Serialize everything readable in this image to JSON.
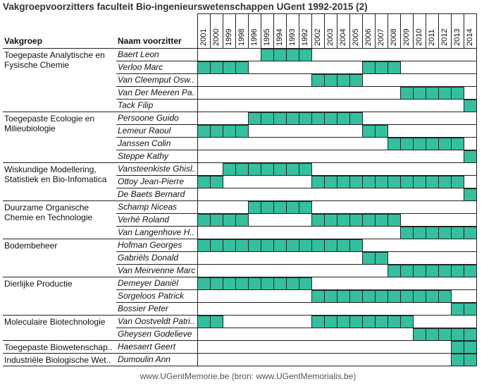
{
  "title": "Vakgroepvoorzitters faculteit Bio-ingenieurswetenschappen UGent 1992-2015 (2)",
  "headers": {
    "group": "Vakgroep",
    "person": "Naam voorzitter"
  },
  "footer": "www.UGentMemorie.be (bron: www.UGentMemorialis.be)",
  "colors": {
    "bar": "#35bf9e",
    "border": "#1f2a2a"
  },
  "chart_data": {
    "type": "table",
    "years": [
      "2001",
      "2000",
      "1999",
      "1998",
      "1996",
      "1995",
      "1994",
      "1993",
      "1992",
      "2002",
      "2003",
      "2004",
      "2005",
      "2006",
      "2007",
      "2008",
      "2009",
      "2010",
      "2011",
      "2012",
      "2013",
      "2014"
    ],
    "groups": [
      {
        "name": "Toegepaste Analytische en Fysische Chemie",
        "rows": [
          {
            "name": "Baert Leon",
            "years": [
              "1995",
              "1994",
              "1993",
              "1992"
            ]
          },
          {
            "name": "Verloo Marc",
            "years": [
              "2001",
              "2000",
              "1999",
              "1998",
              "2006",
              "2007",
              "2008"
            ]
          },
          {
            "name": "Van Cleemput Osw..",
            "years": [
              "2002",
              "2003",
              "2004",
              "2005"
            ]
          },
          {
            "name": "Van Der Meeren Pa..",
            "years": [
              "2009",
              "2010",
              "2011",
              "2012",
              "2013"
            ]
          },
          {
            "name": "Tack Filip",
            "years": [
              "2014"
            ]
          }
        ]
      },
      {
        "name": "Toegepaste Ecologie en Milieubiologie",
        "rows": [
          {
            "name": "Persoone Guido",
            "years": [
              "1996",
              "1995",
              "1994",
              "1993",
              "1992",
              "2002",
              "2003",
              "2004",
              "2005"
            ]
          },
          {
            "name": "Lemeur Raoul",
            "years": [
              "2001",
              "2000",
              "1999",
              "1998",
              "2006",
              "2007"
            ]
          },
          {
            "name": "Janssen Colin",
            "years": [
              "2008",
              "2009",
              "2010",
              "2011",
              "2012",
              "2013"
            ]
          },
          {
            "name": "Steppe Kathy",
            "years": [
              "2014"
            ]
          }
        ]
      },
      {
        "name": "Wiskundige Modellering, Statistiek en Bio-Infomatica",
        "rows": [
          {
            "name": "Vansteenkiste Ghisl..",
            "years": [
              "1999",
              "1998",
              "1996",
              "1995",
              "1994",
              "1993",
              "1992"
            ]
          },
          {
            "name": "Ottoy Jean-Pierre",
            "years": [
              "2001",
              "2000",
              "2002",
              "2003",
              "2004",
              "2005",
              "2006",
              "2007",
              "2008",
              "2009",
              "2010",
              "2011",
              "2012",
              "2013"
            ]
          },
          {
            "name": "De Baets Bernard",
            "years": [
              "2014"
            ]
          }
        ]
      },
      {
        "name": "Duurzame Organische Chemie en Technologie",
        "rows": [
          {
            "name": "Schamp Niceas",
            "years": [
              "1996",
              "1995",
              "1994",
              "1993",
              "1992"
            ]
          },
          {
            "name": "Verhé Roland",
            "years": [
              "2001",
              "2000",
              "1999",
              "1998",
              "2002",
              "2003",
              "2004",
              "2005",
              "2006",
              "2007",
              "2008"
            ]
          },
          {
            "name": "Van Langenhove H..",
            "years": [
              "2009",
              "2010",
              "2011",
              "2012",
              "2013",
              "2014"
            ]
          }
        ]
      },
      {
        "name": "Bodembeheer",
        "rows": [
          {
            "name": "Hofman Georges",
            "years": [
              "2001",
              "2000",
              "1999",
              "1998",
              "1996",
              "1995",
              "1994",
              "1993",
              "1992",
              "2002",
              "2003",
              "2004",
              "2005"
            ]
          },
          {
            "name": "Gabriëls Donald",
            "years": [
              "2006",
              "2007"
            ]
          },
          {
            "name": "Van Meirvenne Marc",
            "years": [
              "2008",
              "2009",
              "2010",
              "2011",
              "2012",
              "2013",
              "2014"
            ]
          }
        ]
      },
      {
        "name": "Dierlijke Productie",
        "rows": [
          {
            "name": "Demeyer Daniël",
            "years": [
              "2001",
              "2000",
              "1999",
              "1998",
              "1996",
              "1995",
              "1994",
              "1993",
              "1992"
            ]
          },
          {
            "name": "Sorgeloos Patrick",
            "years": [
              "2002",
              "2003",
              "2004",
              "2005",
              "2006",
              "2007",
              "2008",
              "2009",
              "2010",
              "2011",
              "2012"
            ]
          },
          {
            "name": "Bossier Peter",
            "years": [
              "2013",
              "2014"
            ]
          }
        ]
      },
      {
        "name": "Moleculaire Biotechnologie",
        "rows": [
          {
            "name": "Van Oostveldt Patri..",
            "years": [
              "2001",
              "2000",
              "2002",
              "2003",
              "2004",
              "2005",
              "2006",
              "2007",
              "2008",
              "2009"
            ]
          },
          {
            "name": "Gheysen Godelieve",
            "years": [
              "2010",
              "2011",
              "2012",
              "2013",
              "2014"
            ]
          }
        ]
      },
      {
        "name": "Toegepaste Biowetenschap..",
        "rows": [
          {
            "name": "Haesaert Geert",
            "years": [
              "2013",
              "2014"
            ]
          }
        ]
      },
      {
        "name": "Industriële Biologische Wet..",
        "rows": [
          {
            "name": "Dumoulin Ann",
            "years": [
              "2013",
              "2014"
            ]
          }
        ]
      }
    ]
  }
}
